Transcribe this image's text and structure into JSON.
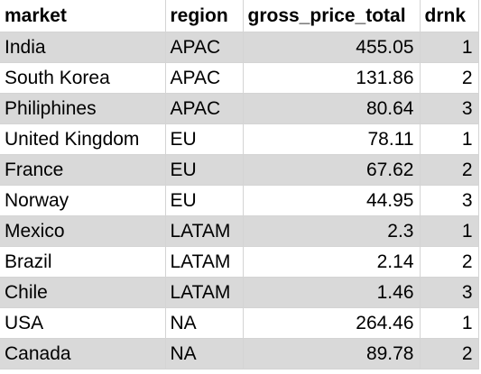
{
  "table": {
    "headers": {
      "market": "market",
      "region": "region",
      "gross_price_total": "gross_price_total",
      "drnk": "drnk"
    },
    "rows": [
      {
        "market": "India",
        "region": "APAC",
        "gross_price_total": "455.05",
        "drnk": "1",
        "shaded": true
      },
      {
        "market": "South Korea",
        "region": "APAC",
        "gross_price_total": "131.86",
        "drnk": "2",
        "shaded": false
      },
      {
        "market": "Philiphines",
        "region": "APAC",
        "gross_price_total": "80.64",
        "drnk": "3",
        "shaded": true
      },
      {
        "market": "United Kingdom",
        "region": "EU",
        "gross_price_total": "78.11",
        "drnk": "1",
        "shaded": false
      },
      {
        "market": "France",
        "region": "EU",
        "gross_price_total": "67.62",
        "drnk": "2",
        "shaded": true
      },
      {
        "market": "Norway",
        "region": "EU",
        "gross_price_total": "44.95",
        "drnk": "3",
        "shaded": false
      },
      {
        "market": "Mexico",
        "region": "LATAM",
        "gross_price_total": "2.3",
        "drnk": "1",
        "shaded": true
      },
      {
        "market": "Brazil",
        "region": "LATAM",
        "gross_price_total": "2.14",
        "drnk": "2",
        "shaded": false
      },
      {
        "market": "Chile",
        "region": "LATAM",
        "gross_price_total": "1.46",
        "drnk": "3",
        "shaded": true
      },
      {
        "market": "USA",
        "region": "NA",
        "gross_price_total": "264.46",
        "drnk": "1",
        "shaded": false
      },
      {
        "market": "Canada",
        "region": "NA",
        "gross_price_total": "89.78",
        "drnk": "2",
        "shaded": true
      }
    ]
  },
  "colors": {
    "shaded_row": "#d9d9d9",
    "plain_row": "#ffffff",
    "gridline": "#d4d4d4"
  }
}
